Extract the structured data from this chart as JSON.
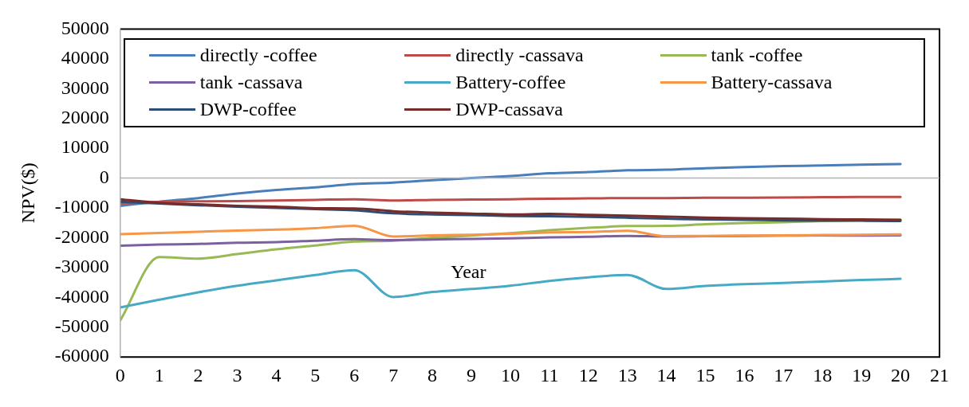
{
  "chart_data": {
    "type": "line",
    "xlabel": "Year",
    "ylabel": "NPV($)",
    "x": [
      0,
      1,
      2,
      3,
      4,
      5,
      6,
      7,
      8,
      9,
      10,
      11,
      12,
      13,
      14,
      15,
      16,
      17,
      18,
      19,
      20
    ],
    "xlim": [
      0,
      21
    ],
    "xticks": [
      0,
      1,
      2,
      3,
      4,
      5,
      6,
      7,
      8,
      9,
      10,
      11,
      12,
      13,
      14,
      15,
      16,
      17,
      18,
      19,
      20,
      21
    ],
    "ylim": [
      -60000,
      50000
    ],
    "yticks": [
      -60000,
      -50000,
      -40000,
      -30000,
      -20000,
      -10000,
      0,
      10000,
      20000,
      30000,
      40000,
      50000
    ],
    "grid": false,
    "ref_lines": [
      {
        "axis": "y",
        "value": 0,
        "color": "#b0b0b0"
      }
    ],
    "legend": "top",
    "marker": "none",
    "line_style": "solid",
    "series": [
      {
        "name": "directly -coffee",
        "color": "#4a7ebb",
        "values": [
          -9300,
          -7900,
          -6700,
          -5200,
          -4000,
          -3100,
          -2000,
          -1500,
          -700,
          0,
          700,
          1600,
          2000,
          2600,
          2800,
          3300,
          3700,
          4000,
          4200,
          4500,
          4700
        ]
      },
      {
        "name": "directly -cassava",
        "color": "#be4b48",
        "values": [
          -8500,
          -8000,
          -7800,
          -7700,
          -7500,
          -7300,
          -7100,
          -7500,
          -7300,
          -7200,
          -7100,
          -6900,
          -6800,
          -6700,
          -6700,
          -6600,
          -6600,
          -6500,
          -6400,
          -6300,
          -6300
        ]
      },
      {
        "name": "tank -coffee",
        "color": "#98b954",
        "values": [
          -47700,
          -26500,
          -27000,
          -25500,
          -23900,
          -22600,
          -21300,
          -21000,
          -20000,
          -19300,
          -18500,
          -17500,
          -16700,
          -16100,
          -16000,
          -15500,
          -15100,
          -14800,
          -14400,
          -14200,
          -14000
        ]
      },
      {
        "name": "tank -cassava",
        "color": "#7d60a0",
        "values": [
          -22700,
          -22300,
          -22100,
          -21700,
          -21500,
          -21000,
          -20500,
          -20800,
          -20600,
          -20400,
          -20200,
          -19900,
          -19700,
          -19400,
          -19600,
          -19500,
          -19400,
          -19300,
          -19200,
          -19300,
          -19200
        ]
      },
      {
        "name": "Battery-coffee",
        "color": "#46aac5",
        "values": [
          -43400,
          -40800,
          -38300,
          -36100,
          -34300,
          -32500,
          -30900,
          -39900,
          -38200,
          -37200,
          -36100,
          -34500,
          -33300,
          -32500,
          -37200,
          -36200,
          -35600,
          -35200,
          -34700,
          -34200,
          -33800
        ]
      },
      {
        "name": "Battery-cassava",
        "color": "#f79646",
        "values": [
          -18800,
          -18400,
          -18000,
          -17600,
          -17300,
          -16800,
          -16000,
          -19600,
          -19200,
          -19000,
          -18700,
          -18200,
          -18100,
          -17700,
          -19500,
          -19400,
          -19300,
          -19200,
          -19100,
          -19000,
          -18900
        ]
      },
      {
        "name": "DWP-coffee",
        "color": "#2c4d75",
        "values": [
          -7900,
          -8500,
          -9100,
          -9600,
          -10000,
          -10400,
          -10800,
          -11800,
          -12200,
          -12400,
          -12700,
          -12800,
          -13000,
          -13300,
          -13600,
          -13900,
          -14000,
          -14200,
          -14300,
          -14300,
          -14400
        ]
      },
      {
        "name": "DWP-cassava",
        "color": "#772c2a",
        "values": [
          -7100,
          -8300,
          -8800,
          -9300,
          -9600,
          -10100,
          -10200,
          -11100,
          -11600,
          -11900,
          -12200,
          -12000,
          -12300,
          -12600,
          -12900,
          -13300,
          -13500,
          -13600,
          -13800,
          -13900,
          -14000
        ]
      }
    ]
  }
}
